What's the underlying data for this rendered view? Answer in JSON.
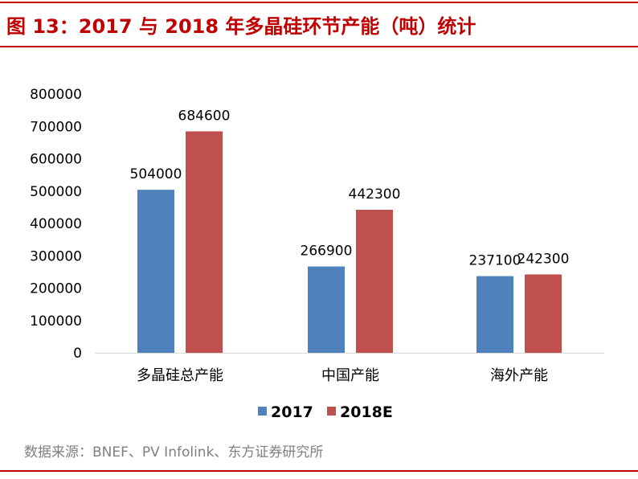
{
  "title": "图 13：2017 与 2018 年多晶硅环节产能（吨）统计",
  "source": "数据来源：BNEF、PV Infolink、东方证券研究所",
  "colors": {
    "accent": "#c00000",
    "series_2017": "#4f81bd",
    "series_2018E": "#c0504d",
    "source_text": "#7f7f7f"
  },
  "chart_data": {
    "type": "bar",
    "title": "",
    "xlabel": "",
    "ylabel": "",
    "categories": [
      "多晶硅总产能",
      "中国产能",
      "海外产能"
    ],
    "series": [
      {
        "name": "2017",
        "values": [
          504000,
          266900,
          237100
        ]
      },
      {
        "name": "2018E",
        "values": [
          684600,
          442300,
          242300
        ]
      }
    ],
    "ylim": [
      0,
      800000
    ],
    "yticks": [
      "0",
      "100000",
      "200000",
      "300000",
      "400000",
      "500000",
      "600000",
      "700000",
      "800000"
    ],
    "grid": false,
    "legend_position": "bottom"
  }
}
